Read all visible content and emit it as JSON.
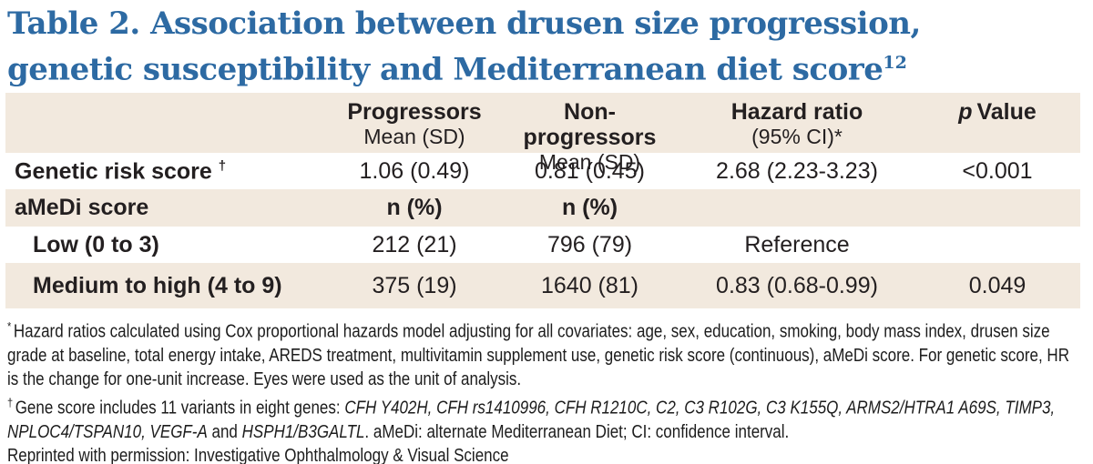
{
  "title": {
    "line1": "Table 2. Association between drusen size progression,",
    "line2": "genetic susceptibility and Mediterranean diet score",
    "citation": "12"
  },
  "colors": {
    "title_blue": "#2d6aa3",
    "band_beige": "#f2e9de",
    "text": "#231f20",
    "divider_gray": "#c8c8c8"
  },
  "table": {
    "header": {
      "progressors": {
        "line1": "Progressors",
        "line2": "Mean (SD)"
      },
      "non_progressors": {
        "line1": "Non-progressors",
        "line2": "Mean (SD)"
      },
      "hazard_ratio": {
        "line1": "Hazard ratio",
        "line2": "(95% CI)*"
      },
      "p_value": {
        "italic": "p",
        "rest": "Value"
      }
    },
    "rows": [
      {
        "label": "Genetic risk score",
        "label_sup": "†",
        "cells": [
          "1.06 (0.49)",
          "0.81 (0.45)",
          "2.68 (2.23-3.23)",
          "<0.001"
        ]
      },
      {
        "label": "aMeDi score",
        "label_sup": "",
        "cells": [
          "n (%)",
          "n (%)",
          "",
          ""
        ]
      },
      {
        "label": "Low (0 to 3)",
        "label_sup": "",
        "cells": [
          "212 (21)",
          "796 (79)",
          "Reference",
          ""
        ]
      },
      {
        "label": "Medium to high (4 to 9)",
        "label_sup": "",
        "cells": [
          "375 (19)",
          "1640 (81)",
          "0.83 (0.68-0.99)",
          "0.049"
        ]
      }
    ]
  },
  "footnotes": {
    "fn1": {
      "sup": "*",
      "text": "Hazard ratios calculated using Cox proportional hazards model adjusting for all covariates: age, sex, education, smoking, body mass index, drusen size grade at baseline, total energy intake, AREDS treatment, multivitamin supplement use, genetic risk score (continuous), aMeDi score. For genetic score, HR is the change for one-unit increase. Eyes were used as the unit of analysis."
    },
    "fn2": {
      "sup": "†",
      "lead": "Gene score includes 11 variants in eight genes: ",
      "genes_italic": "CFH Y402H, CFH rs1410996, CFH R1210C, C2, C3 R102G, C3 K155Q, ARMS2/HTRA1 A69S, TIMP3, NPLOC4/TSPAN10, VEGF-A",
      "conjunction": " and ",
      "gene_italic_2": "HSPH1/B3GALTL",
      "tail": ". aMeDi: alternate Mediterranean Diet; CI: confidence interval."
    },
    "reprint": "Reprinted with permission: Investigative Ophthalmology & Visual Science"
  }
}
